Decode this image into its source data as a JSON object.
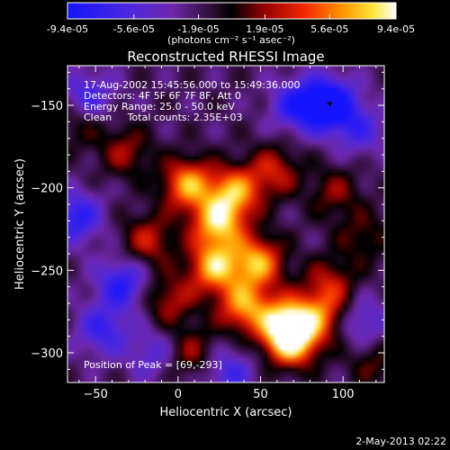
{
  "colorbar": {
    "tick_labels": [
      "-9.4e-05",
      "-5.6e-05",
      "-1.9e-05",
      "1.9e-05",
      "5.6e-05",
      "9.4e-05"
    ],
    "tick_values": [
      -9.4e-05,
      -5.6e-05,
      -1.9e-05,
      1.9e-05,
      5.6e-05,
      9.4e-05
    ],
    "range": [
      -9.4e-05,
      9.4e-05
    ],
    "unit_label": "(photons cm⁻² s⁻¹ asec⁻²)"
  },
  "title": "Reconstructed RHESSI Image",
  "info_lines": [
    "17-Aug-2002 15:45:56.000 to 15:49:36.000",
    "Detectors: 4F 5F 6F 7F 8F, Att 0",
    "Energy Range: 25.0 - 50.0 keV",
    "Clean     Total counts: 2.35E+03"
  ],
  "peak_label": "Position of Peak = [69,-293]",
  "xlabel": "Heliocentric X (arcsec)",
  "ylabel": "Heliocentric Y (arcsec)",
  "timestamp": "2-May-2013 02:22",
  "chart_data": {
    "type": "heatmap",
    "title": "Reconstructed RHESSI Image",
    "xlabel": "Heliocentric X (arcsec)",
    "ylabel": "Heliocentric Y (arcsec)",
    "xlim": [
      -67,
      125
    ],
    "ylim": [
      -318,
      -126
    ],
    "xticks": [
      -50,
      0,
      50,
      100
    ],
    "yticks": [
      -300,
      -250,
      -200,
      -150
    ],
    "colormap": "blue-purple-black-red-yellow-white",
    "value_range": [
      -9.4e-05,
      9.4e-05
    ],
    "peak": [
      69,
      -293
    ],
    "sources": [
      {
        "x": 6,
        "y": -198,
        "value": 8.5e-05
      },
      {
        "x": 24,
        "y": -222,
        "value": 9e-05
      },
      {
        "x": 34,
        "y": -203,
        "value": 8.2e-05
      },
      {
        "x": 22,
        "y": -248,
        "value": 8.8e-05
      },
      {
        "x": 48,
        "y": -245,
        "value": 8.6e-05
      },
      {
        "x": 40,
        "y": -272,
        "value": 8e-05
      },
      {
        "x": 65,
        "y": -282,
        "value": 9.2e-05
      },
      {
        "x": 69,
        "y": -293,
        "value": 9.4e-05
      },
      {
        "x": 86,
        "y": -278,
        "value": 6e-05
      },
      {
        "x": -18,
        "y": -232,
        "value": 5e-05
      },
      {
        "x": -32,
        "y": -178,
        "value": 4e-05
      },
      {
        "x": 58,
        "y": -190,
        "value": 5e-05
      },
      {
        "x": 95,
        "y": -203,
        "value": 3.5e-05
      },
      {
        "x": 112,
        "y": -230,
        "value": 3e-05
      },
      {
        "x": 92,
        "y": -258,
        "value": 4.5e-05
      },
      {
        "x": 8,
        "y": -300,
        "value": 4e-05
      },
      {
        "x": -5,
        "y": -268,
        "value": 4.5e-05
      },
      {
        "x": 118,
        "y": -305,
        "value": 3e-05
      },
      {
        "x": -60,
        "y": -160,
        "value": 3e-05
      },
      {
        "x": -34,
        "y": -258,
        "value": -6e-05
      },
      {
        "x": -46,
        "y": -286,
        "value": -5e-05
      },
      {
        "x": 92,
        "y": -149,
        "value": -9.4e-05
      },
      {
        "x": 72,
        "y": -150,
        "value": -6e-05
      },
      {
        "x": -62,
        "y": -218,
        "value": -6e-05
      },
      {
        "x": -55,
        "y": -145,
        "value": -5e-05
      },
      {
        "x": 112,
        "y": -282,
        "value": -4e-05
      },
      {
        "x": 30,
        "y": -312,
        "value": -4.5e-05
      },
      {
        "x": 110,
        "y": -165,
        "value": -4e-05
      },
      {
        "x": -15,
        "y": -300,
        "value": -3.5e-05
      }
    ]
  }
}
